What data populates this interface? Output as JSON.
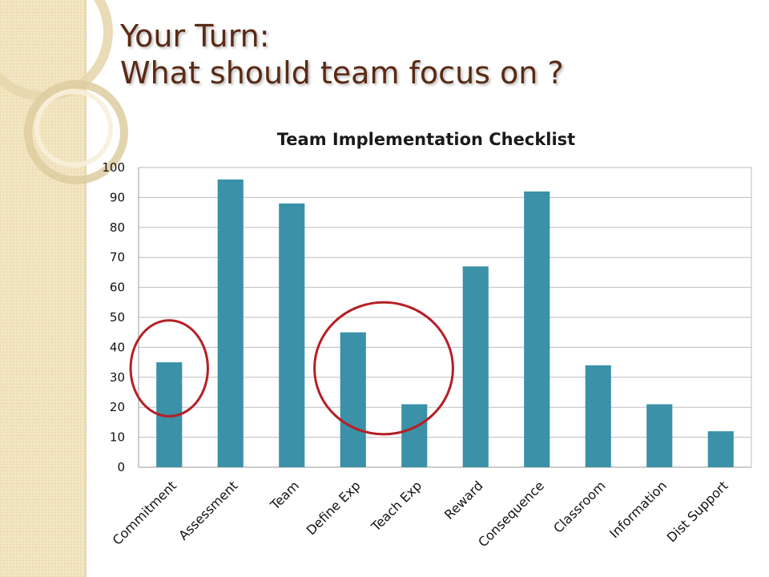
{
  "slide": {
    "title_line1": "Your Turn:",
    "title_line2": "What should team focus on ?",
    "colors": {
      "title": "#5a2a14",
      "band": "#f3e7c3",
      "ring": "#e2d2a6"
    }
  },
  "chart_data": {
    "type": "bar",
    "title": "Team Implementation Checklist",
    "categories": [
      "Commitment",
      "Assessment",
      "Team",
      "Define Exp",
      "Teach Exp",
      "Reward",
      "Consequence",
      "Classroom",
      "Information",
      "Dist Support"
    ],
    "values": [
      35,
      96,
      88,
      45,
      21,
      67,
      92,
      34,
      21,
      12
    ],
    "ylim": [
      0,
      100
    ],
    "yticks": [
      0,
      10,
      20,
      30,
      40,
      50,
      60,
      70,
      80,
      90,
      100
    ],
    "grid": true,
    "legend": "none",
    "bar_color": "#3a91a8",
    "highlight_color": "#b52025",
    "highlights": [
      {
        "name": "commitment-highlight",
        "categories": [
          "Commitment"
        ],
        "value_range": [
          17,
          49
        ]
      },
      {
        "name": "exp-highlight",
        "categories": [
          "Define Exp",
          "Teach Exp"
        ],
        "value_range": [
          11,
          55
        ]
      }
    ]
  }
}
